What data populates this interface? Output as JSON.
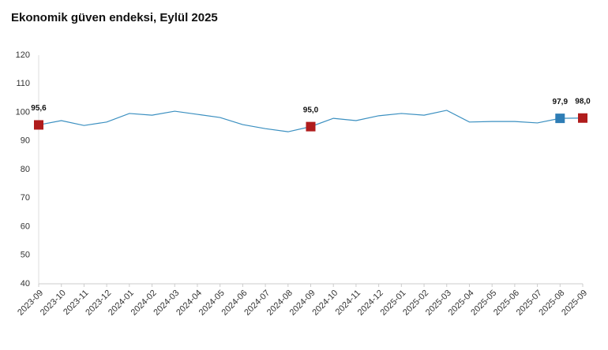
{
  "chart_data": {
    "type": "line",
    "title": "Ekonomik güven endeksi, Eylül 2025",
    "categories": [
      "2023-09",
      "2023-10",
      "2023-11",
      "2023-12",
      "2024-01",
      "2024-02",
      "2024-03",
      "2024-04",
      "2024-05",
      "2024-06",
      "2024-07",
      "2024-08",
      "2024-09",
      "2024-10",
      "2024-11",
      "2024-12",
      "2025-01",
      "2025-02",
      "2025-03",
      "2025-04",
      "2025-05",
      "2025-06",
      "2025-07",
      "2025-08",
      "2025-09"
    ],
    "series": [
      {
        "name": "Ekonomik güven endeksi",
        "color": "#3a8fc0",
        "values": [
          95.6,
          97.1,
          95.4,
          96.6,
          99.6,
          99.0,
          100.4,
          99.3,
          98.2,
          95.7,
          94.3,
          93.2,
          95.0,
          97.9,
          97.1,
          98.8,
          99.6,
          99.0,
          100.7,
          96.6,
          96.8,
          96.8,
          96.3,
          97.9,
          98.0
        ],
        "value_labels": [
          "95,6",
          null,
          null,
          null,
          null,
          null,
          null,
          null,
          null,
          null,
          null,
          null,
          "95,0",
          null,
          null,
          null,
          null,
          null,
          null,
          null,
          null,
          null,
          null,
          "97,9",
          "98,0"
        ],
        "marker_colors": [
          "#b01c1c",
          null,
          null,
          null,
          null,
          null,
          null,
          null,
          null,
          null,
          null,
          null,
          "#b01c1c",
          null,
          null,
          null,
          null,
          null,
          null,
          null,
          null,
          null,
          null,
          "#2e7db5",
          "#b01c1c"
        ]
      }
    ],
    "ylim": [
      40,
      120
    ],
    "yticks": [
      40,
      50,
      60,
      70,
      80,
      90,
      100,
      110,
      120
    ],
    "grid": false
  }
}
